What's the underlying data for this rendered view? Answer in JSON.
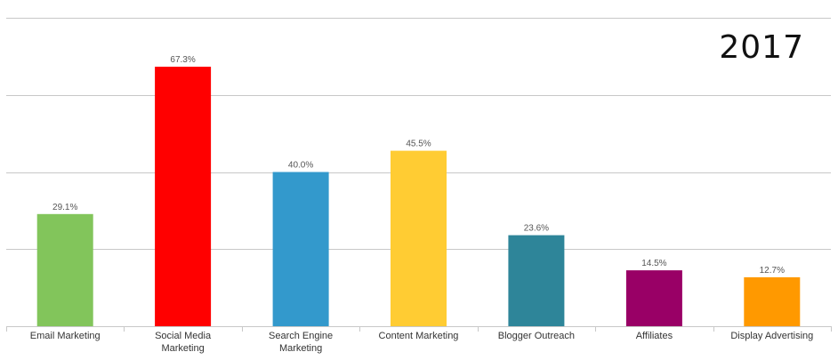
{
  "year_label": "2017",
  "chart_data": {
    "type": "bar",
    "categories": [
      [
        "Email Marketing"
      ],
      [
        "Social Media",
        "Marketing"
      ],
      [
        "Search Engine",
        "Marketing"
      ],
      [
        "Content Marketing"
      ],
      [
        "Blogger Outreach"
      ],
      [
        "Affiliates"
      ],
      [
        "Display Advertising"
      ]
    ],
    "values": [
      29.1,
      67.3,
      40.0,
      45.5,
      23.6,
      14.5,
      12.7
    ],
    "value_labels": [
      "29.1%",
      "67.3%",
      "40.0%",
      "45.5%",
      "23.6%",
      "14.5%",
      "12.7%"
    ],
    "colors": [
      "#82c55b",
      "#ff0000",
      "#3399cc",
      "#ffcc33",
      "#2e8599",
      "#990066",
      "#ff9900"
    ],
    "ylim": [
      0,
      80
    ],
    "grid": true,
    "title": "",
    "xlabel": "",
    "ylabel": ""
  }
}
